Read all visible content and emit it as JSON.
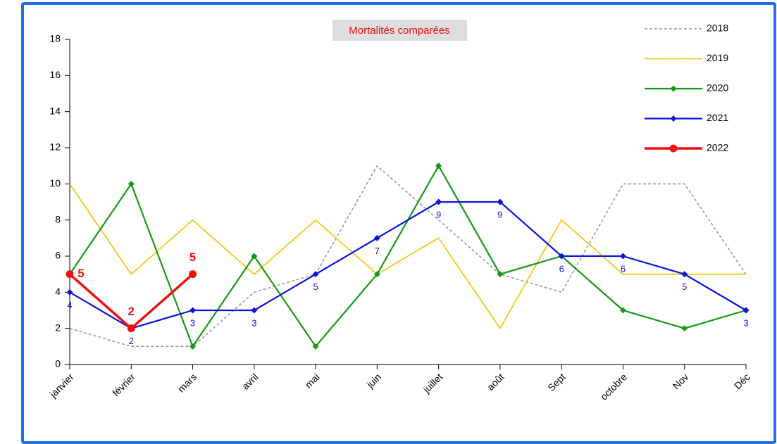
{
  "chart_data": {
    "type": "line",
    "title": "Mortalités comparées",
    "categories": [
      "janvier",
      "février",
      "mars",
      "avril",
      "mai",
      "juin",
      "juillet",
      "août",
      "Sept",
      "octobre",
      "Nov",
      "Déc"
    ],
    "ylim": [
      0,
      18
    ],
    "yticks": [
      0,
      2,
      4,
      6,
      8,
      10,
      12,
      14,
      16,
      18
    ],
    "legend": "top-right",
    "series": [
      {
        "name": "2018",
        "color": "#999999",
        "dash": true,
        "marker": "none",
        "width": 1.6,
        "data_labels": false,
        "values": [
          2,
          1,
          1,
          4,
          5,
          11,
          8,
          5,
          4,
          10,
          10,
          5
        ]
      },
      {
        "name": "2019",
        "color": "#f5c518",
        "dash": false,
        "marker": "none",
        "width": 1.8,
        "data_labels": false,
        "values": [
          10,
          5,
          8,
          5,
          8,
          5,
          7,
          2,
          8,
          5,
          5,
          5
        ]
      },
      {
        "name": "2020",
        "color": "#129b12",
        "dash": false,
        "marker": "diamond",
        "width": 2.2,
        "data_labels": false,
        "values": [
          5,
          10,
          1,
          6,
          1,
          5,
          11,
          5,
          6,
          3,
          2,
          3
        ]
      },
      {
        "name": "2021",
        "color": "#0a14e0",
        "dash": false,
        "marker": "diamond",
        "width": 2.2,
        "data_labels": true,
        "values": [
          4,
          2,
          3,
          3,
          5,
          7,
          9,
          9,
          6,
          6,
          5,
          3
        ]
      },
      {
        "name": "2022",
        "color": "#f01010",
        "dash": false,
        "marker": "circle",
        "width": 3.5,
        "data_labels": true,
        "values": [
          5,
          2,
          5,
          null,
          null,
          null,
          null,
          null,
          null,
          null,
          null,
          null
        ]
      }
    ]
  }
}
